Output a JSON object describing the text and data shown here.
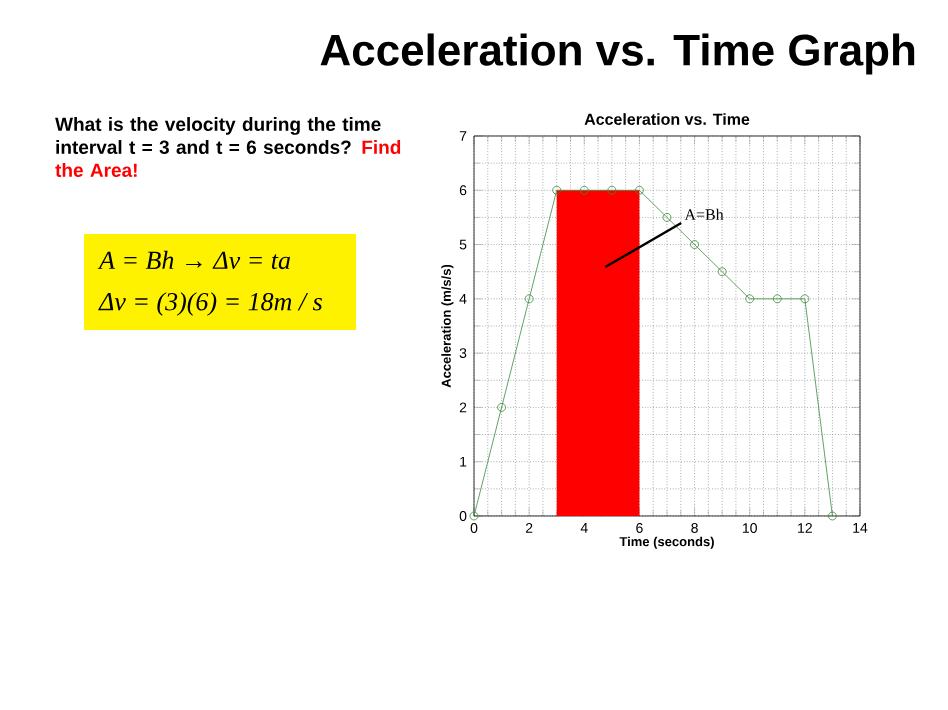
{
  "chart_data": {
    "type": "line",
    "title": "Acceleration vs. Time Graph",
    "subtitle": "Acceleration vs. Time",
    "xlabel": "Time (seconds)",
    "ylabel": "Acceleration (m/s/s)",
    "x": [
      0,
      1,
      2,
      3,
      4,
      5,
      6,
      7,
      8,
      9,
      10,
      11,
      12,
      13
    ],
    "series": [
      {
        "type": "area",
        "color": "#ff0000",
        "x": [
          3,
          6
        ],
        "values": [
          6,
          6
        ],
        "marker": "none"
      },
      {
        "color": "#3c8c3c",
        "values": [
          0,
          2,
          4,
          6,
          6,
          6,
          6,
          5.5,
          5,
          4.5,
          4,
          4,
          4,
          0
        ],
        "marker": "circle"
      }
    ],
    "xlim": [
      0,
      14
    ],
    "xticks": [
      0,
      2,
      4,
      6,
      8,
      10,
      12,
      14
    ],
    "ylim": [
      0,
      7
    ],
    "yticks": [
      0,
      1,
      2,
      3,
      4,
      5,
      6,
      7
    ],
    "grid": true,
    "line_style": "solid",
    "annotations": [
      "What is the velocity during the time interval t = 3 and t = 6 seconds?",
      "Find the Area!",
      "A = Bh → Δv = ta",
      "Δv = (3)(6) = 18m / s",
      "A=Bh"
    ]
  }
}
